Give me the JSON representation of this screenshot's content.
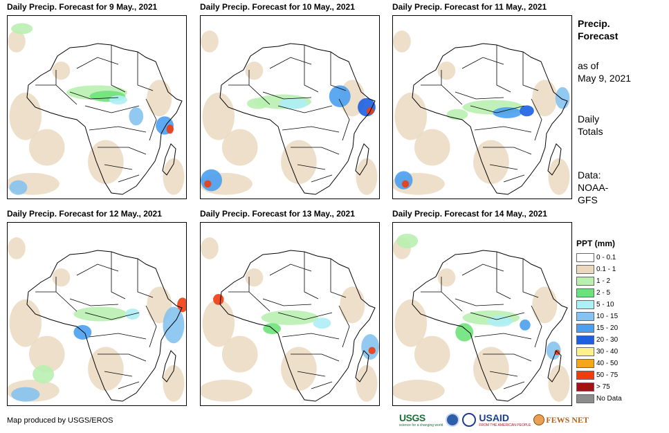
{
  "panels": [
    {
      "title": "Daily Precip. Forecast for 9 May., 2021"
    },
    {
      "title": "Daily Precip. Forecast for 10 May., 2021"
    },
    {
      "title": "Daily Precip. Forecast for 11 May., 2021"
    },
    {
      "title": "Daily Precip. Forecast for 12 May., 2021"
    },
    {
      "title": "Daily Precip. Forecast for 13 May., 2021"
    },
    {
      "title": "Daily Precip. Forecast for 14 May., 2021"
    }
  ],
  "side_info": {
    "title_line1": "Precip.",
    "title_line2": "Forecast",
    "asof_line1": "as of",
    "asof_line2": "May 9, 2021",
    "totals_line1": "Daily",
    "totals_line2": "Totals",
    "data_line1": "Data:",
    "data_line2": "NOAA-",
    "data_line3": "GFS"
  },
  "legend": {
    "title": "PPT (mm)",
    "items": [
      {
        "label": "0 - 0.1",
        "color": "#ffffff"
      },
      {
        "label": "0.1 - 1",
        "color": "#ead9bf"
      },
      {
        "label": "1 - 2",
        "color": "#b9f0b0"
      },
      {
        "label": "2 - 5",
        "color": "#6ee27a"
      },
      {
        "label": "5 - 10",
        "color": "#aeeef5"
      },
      {
        "label": "10 - 15",
        "color": "#86c3f0"
      },
      {
        "label": "15 - 20",
        "color": "#4a9ff0"
      },
      {
        "label": "20 - 30",
        "color": "#1c5fe0"
      },
      {
        "label": "30 - 40",
        "color": "#fff08c"
      },
      {
        "label": "40 - 50",
        "color": "#f5a71c"
      },
      {
        "label": "50 - 75",
        "color": "#f03c0f"
      },
      {
        "label": "> 75",
        "color": "#a01414"
      },
      {
        "label": "No Data",
        "color": "#8c8c8c"
      }
    ]
  },
  "credit": "Map produced by USGS/EROS",
  "logos": {
    "usgs": "USGS",
    "usgs_tagline": "science for a changing world",
    "usaid": "USAID",
    "usaid_tagline": "FROM THE AMERICAN PEOPLE",
    "fews": "FEWS NET"
  }
}
